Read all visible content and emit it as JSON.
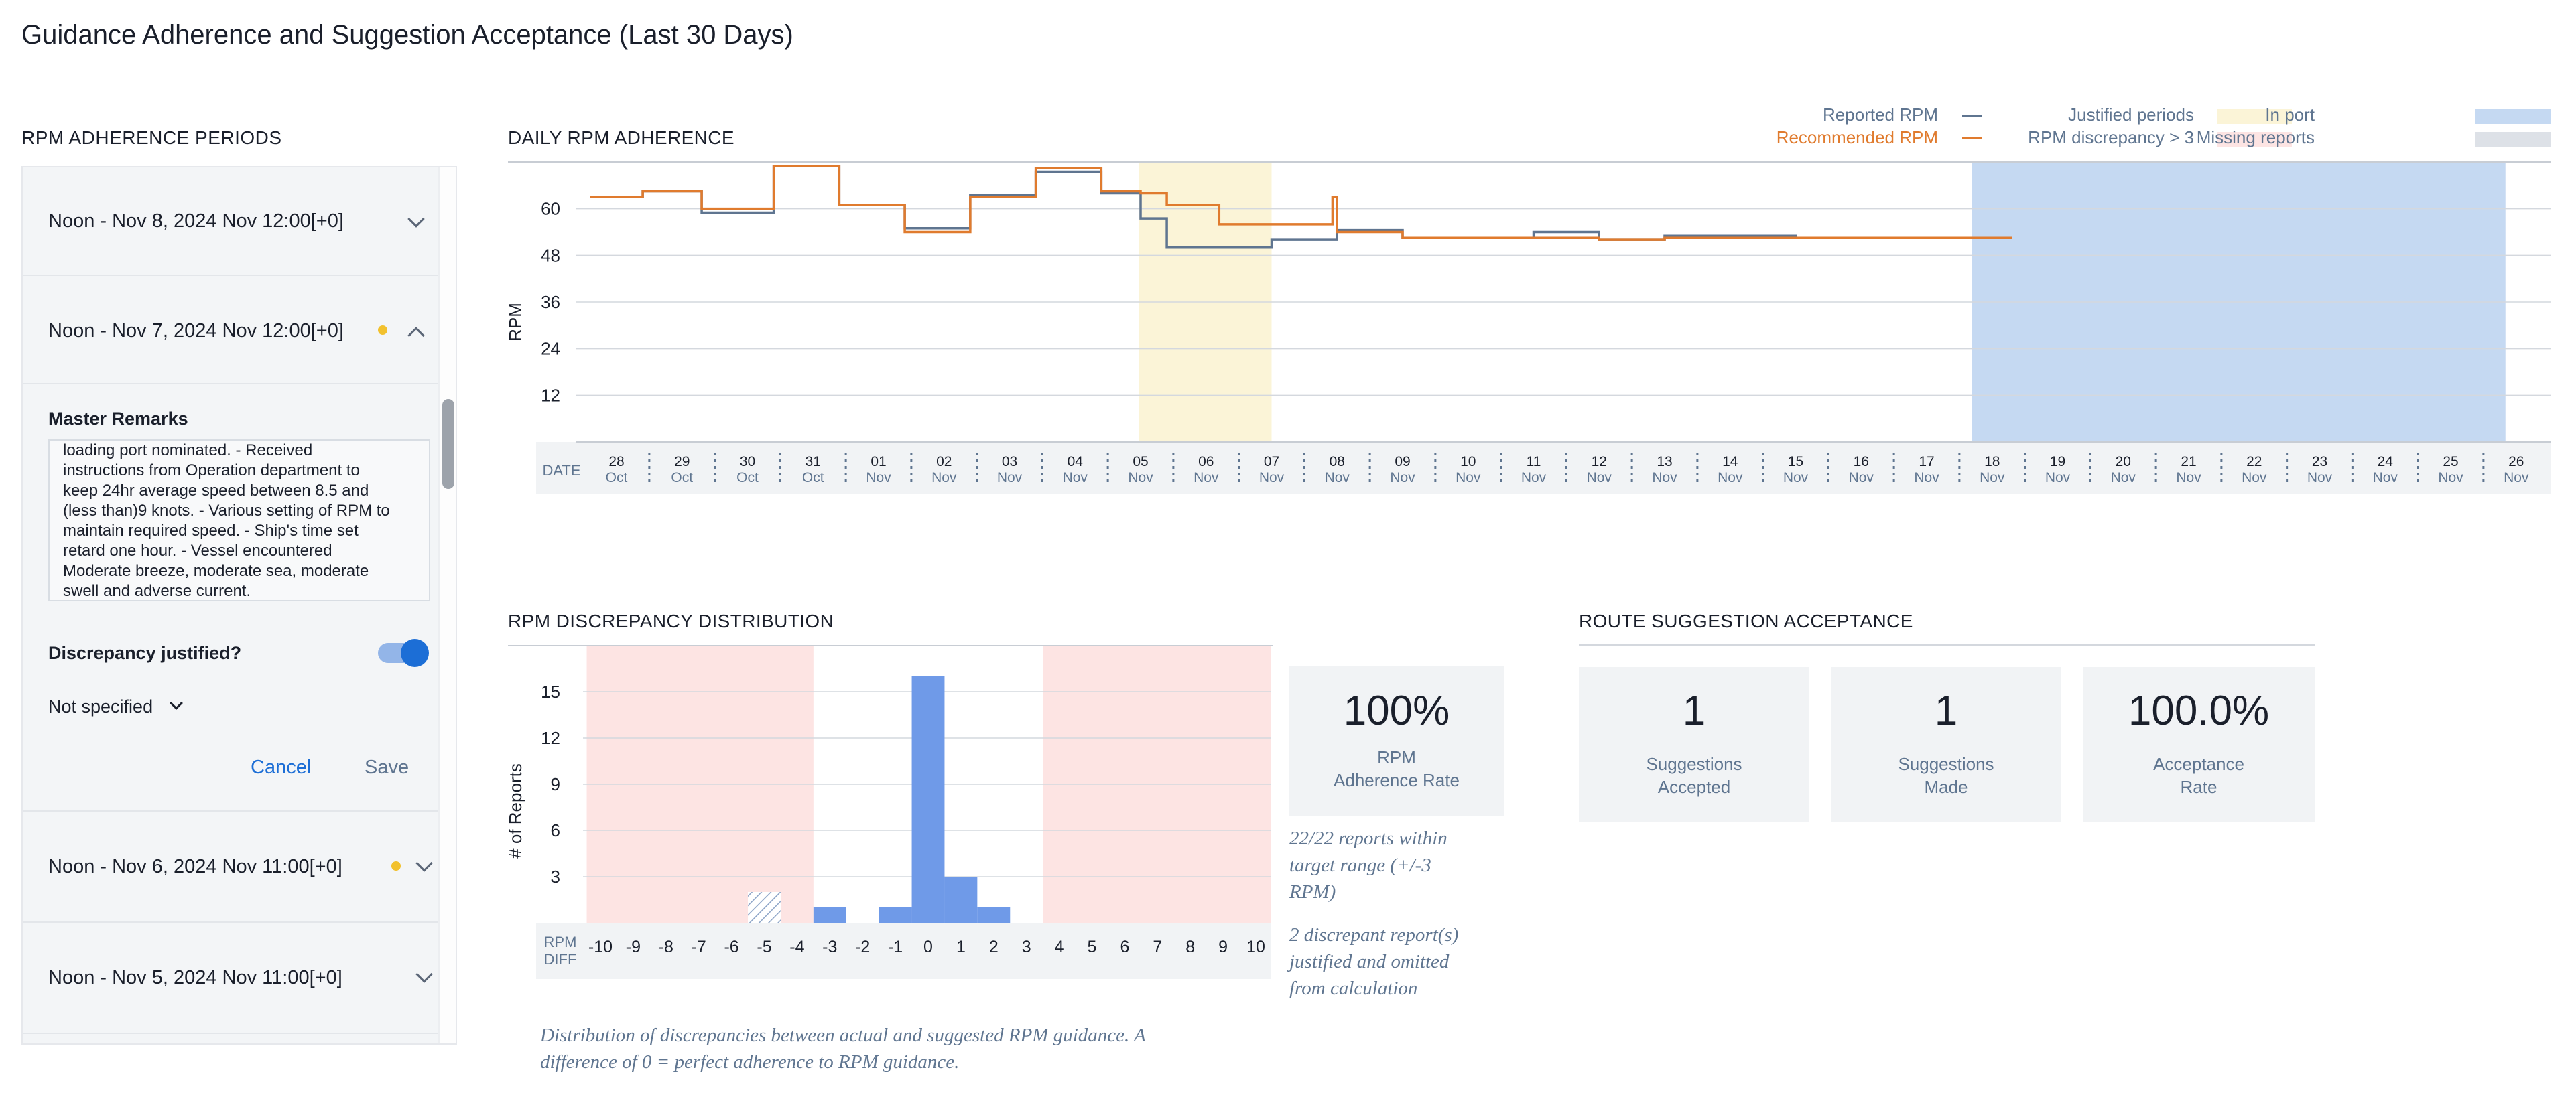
{
  "page": {
    "title": "Guidance Adherence and Suggestion Acceptance (Last 30 Days)"
  },
  "left": {
    "heading": "RPM ADHERENCE PERIODS",
    "periods": [
      {
        "label": "Noon - Nov 8, 2024 Nov 12:00[+0]",
        "flag": false,
        "expanded": false
      },
      {
        "label": "Noon - Nov 7, 2024 Nov 12:00[+0]",
        "flag": true,
        "expanded": true
      },
      {
        "label": "Noon - Nov 6, 2024 Nov 11:00[+0]",
        "flag": true,
        "expanded": false
      },
      {
        "label": "Noon - Nov 5, 2024 Nov 11:00[+0]",
        "flag": false,
        "expanded": false
      }
    ],
    "form": {
      "remarks_label": "Master Remarks",
      "remarks_lines": [
        "loading port nominated. - Received",
        "instructions from Operation department to",
        "keep 24hr average speed between 8.5 and",
        "(less than)9 knots. - Various setting of RPM to",
        "maintain required speed. - Ship's time set",
        "retard one hour. - Vessel encountered",
        "Moderate breeze, moderate sea, moderate",
        "swell and adverse current."
      ],
      "justified_label": "Discrepancy justified?",
      "justified_value": true,
      "reason_select": "Not specified",
      "cancel_label": "Cancel",
      "save_label": "Save"
    }
  },
  "daily": {
    "heading": "DAILY RPM ADHERENCE",
    "legend": {
      "reported": "Reported RPM",
      "recommended": "Recommended RPM",
      "justified": "Justified periods",
      "discrepancy": "RPM discrepancy > 3",
      "in_port": "In port",
      "missing": "Missing reports"
    },
    "date_label": "DATE"
  },
  "dist": {
    "heading": "RPM DISCREPANCY DISTRIBUTION",
    "caption_lines": [
      "Distribution of discrepancies between actual and suggested RPM guidance. A",
      "difference of 0 = perfect adherence to RPM guidance."
    ],
    "adherence_value": "100%",
    "adherence_label_1": "RPM",
    "adherence_label_2": "Adherence Rate",
    "note1_lines": [
      "22/22 reports within",
      "target range (+/-3",
      "RPM)"
    ],
    "note2_lines": [
      "2 discrepant report(s)",
      "justified and omitted",
      "from calculation"
    ]
  },
  "route": {
    "heading": "ROUTE SUGGESTION ACCEPTANCE",
    "cards": [
      {
        "value": "1",
        "label1": "Suggestions",
        "label2": "Accepted"
      },
      {
        "value": "1",
        "label1": "Suggestions",
        "label2": "Made"
      },
      {
        "value": "100.0%",
        "label1": "Acceptance",
        "label2": "Rate"
      }
    ]
  },
  "colors": {
    "reported": "#5f7590",
    "recommended": "#e07b2e",
    "justified": "#fbf4d7",
    "discrepancy": "#fde4e3",
    "in_port": "#c5d9f2",
    "missing": "#dde1e7",
    "bars": "#6f9ae8",
    "accent": "#1c6ed6"
  },
  "chart_data": [
    {
      "type": "line",
      "title": "DAILY RPM ADHERENCE",
      "xlabel": "DATE",
      "ylabel": "RPM",
      "ylim": [
        0,
        72
      ],
      "yticks": [
        12,
        24,
        36,
        48,
        60
      ],
      "x": [
        "28 Oct",
        "29 Oct",
        "30 Oct",
        "31 Oct",
        "01 Nov",
        "02 Nov",
        "03 Nov",
        "04 Nov",
        "05 Nov",
        "06 Nov",
        "07 Nov",
        "08 Nov",
        "09 Nov",
        "10 Nov",
        "11 Nov",
        "12 Nov",
        "13 Nov",
        "14 Nov",
        "15 Nov",
        "16 Nov",
        "17 Nov",
        "18 Nov",
        "19 Nov",
        "20 Nov",
        "21 Nov",
        "22 Nov",
        "23 Nov",
        "24 Nov",
        "25 Nov",
        "26 Nov"
      ],
      "x_day": [
        {
          "d": "28",
          "m": "Oct"
        },
        {
          "d": "29",
          "m": "Oct"
        },
        {
          "d": "30",
          "m": "Oct"
        },
        {
          "d": "31",
          "m": "Oct"
        },
        {
          "d": "01",
          "m": "Nov"
        },
        {
          "d": "02",
          "m": "Nov"
        },
        {
          "d": "03",
          "m": "Nov"
        },
        {
          "d": "04",
          "m": "Nov"
        },
        {
          "d": "05",
          "m": "Nov"
        },
        {
          "d": "06",
          "m": "Nov"
        },
        {
          "d": "07",
          "m": "Nov"
        },
        {
          "d": "08",
          "m": "Nov"
        },
        {
          "d": "09",
          "m": "Nov"
        },
        {
          "d": "10",
          "m": "Nov"
        },
        {
          "d": "11",
          "m": "Nov"
        },
        {
          "d": "12",
          "m": "Nov"
        },
        {
          "d": "13",
          "m": "Nov"
        },
        {
          "d": "14",
          "m": "Nov"
        },
        {
          "d": "15",
          "m": "Nov"
        },
        {
          "d": "16",
          "m": "Nov"
        },
        {
          "d": "17",
          "m": "Nov"
        },
        {
          "d": "18",
          "m": "Nov"
        },
        {
          "d": "19",
          "m": "Nov"
        },
        {
          "d": "20",
          "m": "Nov"
        },
        {
          "d": "21",
          "m": "Nov"
        },
        {
          "d": "22",
          "m": "Nov"
        },
        {
          "d": "23",
          "m": "Nov"
        },
        {
          "d": "24",
          "m": "Nov"
        },
        {
          "d": "25",
          "m": "Nov"
        },
        {
          "d": "26",
          "m": "Nov"
        }
      ],
      "series": [
        {
          "name": "Reported RPM",
          "points": [
            [
              0,
              63
            ],
            [
              0.4,
              64.5
            ],
            [
              1.3,
              59
            ],
            [
              2.4,
              71
            ],
            [
              3.4,
              61
            ],
            [
              4.4,
              55
            ],
            [
              5.4,
              63.5
            ],
            [
              6.4,
              69.5
            ],
            [
              7.4,
              64
            ],
            [
              8.0,
              57.5
            ],
            [
              8.4,
              50
            ],
            [
              10.0,
              52
            ],
            [
              11.0,
              54.5
            ],
            [
              12.0,
              52.5
            ],
            [
              14.0,
              54
            ],
            [
              15.0,
              52
            ],
            [
              16.0,
              53
            ],
            [
              18.0,
              52.5
            ],
            [
              21.3,
              52.5
            ]
          ]
        },
        {
          "name": "Recommended RPM",
          "points": [
            [
              0,
              63
            ],
            [
              0.4,
              64.5
            ],
            [
              1.3,
              60
            ],
            [
              2.4,
              71
            ],
            [
              3.4,
              61
            ],
            [
              4.4,
              54
            ],
            [
              5.4,
              63
            ],
            [
              6.4,
              70.5
            ],
            [
              7.4,
              64.5
            ],
            [
              8.0,
              64
            ],
            [
              8.4,
              61
            ],
            [
              9.2,
              56
            ],
            [
              10.9,
              56
            ],
            [
              10.93,
              63
            ],
            [
              11.0,
              54
            ],
            [
              12.0,
              52.5
            ],
            [
              15.0,
              52
            ],
            [
              16.0,
              52.5
            ],
            [
              18.0,
              52.5
            ],
            [
              21.3,
              52.5
            ]
          ]
        }
      ],
      "shaded": [
        {
          "type": "justified",
          "from": "05 Nov",
          "to": "07 Nov"
        },
        {
          "type": "in_port",
          "from": "18 Nov",
          "to": "26 Nov"
        }
      ],
      "legend": "top-right",
      "grid": true
    },
    {
      "type": "bar",
      "title": "RPM DISCREPANCY DISTRIBUTION",
      "xlabel": "RPM DIFF",
      "ylabel": "# of Reports",
      "ylim": [
        0,
        18
      ],
      "yticks": [
        3,
        6,
        9,
        12,
        15
      ],
      "categories": [
        -10,
        -9,
        -8,
        -7,
        -6,
        -5,
        -4,
        -3,
        -2,
        -1,
        0,
        1,
        2,
        3,
        4,
        5,
        6,
        7,
        8,
        9,
        10
      ],
      "values": [
        0,
        0,
        0,
        0,
        0,
        0,
        0,
        1,
        0,
        1,
        16,
        3,
        1,
        0,
        0,
        0,
        0,
        0,
        0,
        0,
        0
      ],
      "justified_values": [
        0,
        0,
        0,
        0,
        0,
        2,
        0,
        0,
        0,
        0,
        0,
        0,
        0,
        0,
        0,
        0,
        0,
        0,
        0,
        0,
        0
      ],
      "shaded_ranges": [
        [
          -10,
          -3.5
        ],
        [
          3.5,
          10
        ]
      ],
      "grid": true
    }
  ]
}
